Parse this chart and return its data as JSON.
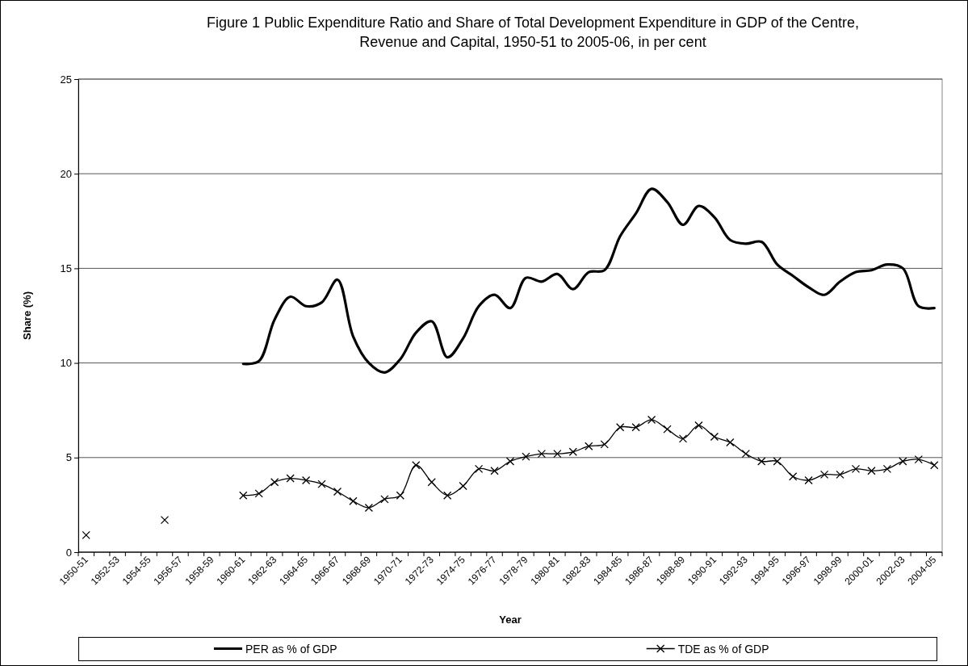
{
  "chart_data": {
    "type": "line",
    "title": "Figure 1 Public Expenditure Ratio and Share of Total Development Expenditure in GDP of the Centre, Revenue and Capital, 1950-51 to 2005-06, in per cent",
    "xlabel": "Year",
    "ylabel": "Share (%)",
    "categories": [
      "1950-51",
      null,
      "1952-53",
      null,
      "1954-55",
      null,
      "1956-57",
      null,
      "1958-59",
      null,
      "1960-61",
      null,
      "1962-63",
      null,
      "1964-65",
      null,
      "1966-67",
      null,
      "1968-69",
      null,
      "1970-71",
      null,
      "1972-73",
      null,
      "1974-75",
      null,
      "1976-77",
      null,
      "1978-79",
      null,
      "1980-81",
      null,
      "1982-83",
      null,
      "1984-85",
      null,
      "1986-87",
      null,
      "1988-89",
      null,
      "1990-91",
      null,
      "1992-93",
      null,
      "1994-95",
      null,
      "1996-97",
      null,
      "1998-99",
      null,
      "2000-01",
      null,
      "2002-03",
      null,
      "2004-05"
    ],
    "series": [
      {
        "name": "PER as % of GDP",
        "color": "#000000",
        "marker": "none",
        "values": [
          null,
          null,
          null,
          null,
          null,
          null,
          null,
          null,
          null,
          null,
          9.95,
          10.1,
          12.3,
          13.5,
          13.0,
          13.2,
          14.4,
          11.4,
          10.0,
          9.5,
          10.2,
          11.6,
          12.2,
          10.3,
          11.3,
          13.0,
          13.6,
          12.9,
          14.5,
          14.3,
          14.7,
          13.9,
          14.8,
          14.9,
          16.7,
          17.9,
          19.2,
          18.5,
          17.3,
          18.3,
          17.7,
          16.5,
          16.3,
          16.4,
          15.2,
          14.6,
          14.0,
          13.6,
          14.3,
          14.8,
          14.9,
          15.2,
          15.0,
          13.0,
          12.9
        ]
      },
      {
        "name": "TDE as % of GDP",
        "color": "#000000",
        "marker": "cross",
        "values": [
          0.9,
          null,
          null,
          null,
          null,
          1.7,
          null,
          null,
          null,
          null,
          3.0,
          3.1,
          3.7,
          3.9,
          3.8,
          3.6,
          3.2,
          2.7,
          2.35,
          2.8,
          3.0,
          4.6,
          3.7,
          3.0,
          3.5,
          4.4,
          4.3,
          4.8,
          5.05,
          5.2,
          5.2,
          5.3,
          5.6,
          5.7,
          6.6,
          6.6,
          7.0,
          6.5,
          6.0,
          6.7,
          6.1,
          5.8,
          5.2,
          4.8,
          4.8,
          4.0,
          3.8,
          4.1,
          4.1,
          4.4,
          4.3,
          4.4,
          4.8,
          4.9,
          4.6
        ]
      }
    ],
    "ylim": [
      0,
      25
    ],
    "yticks": [
      0,
      5,
      10,
      15,
      20,
      25
    ],
    "grid": "y",
    "legend": "bottom",
    "line_style": "solid"
  }
}
